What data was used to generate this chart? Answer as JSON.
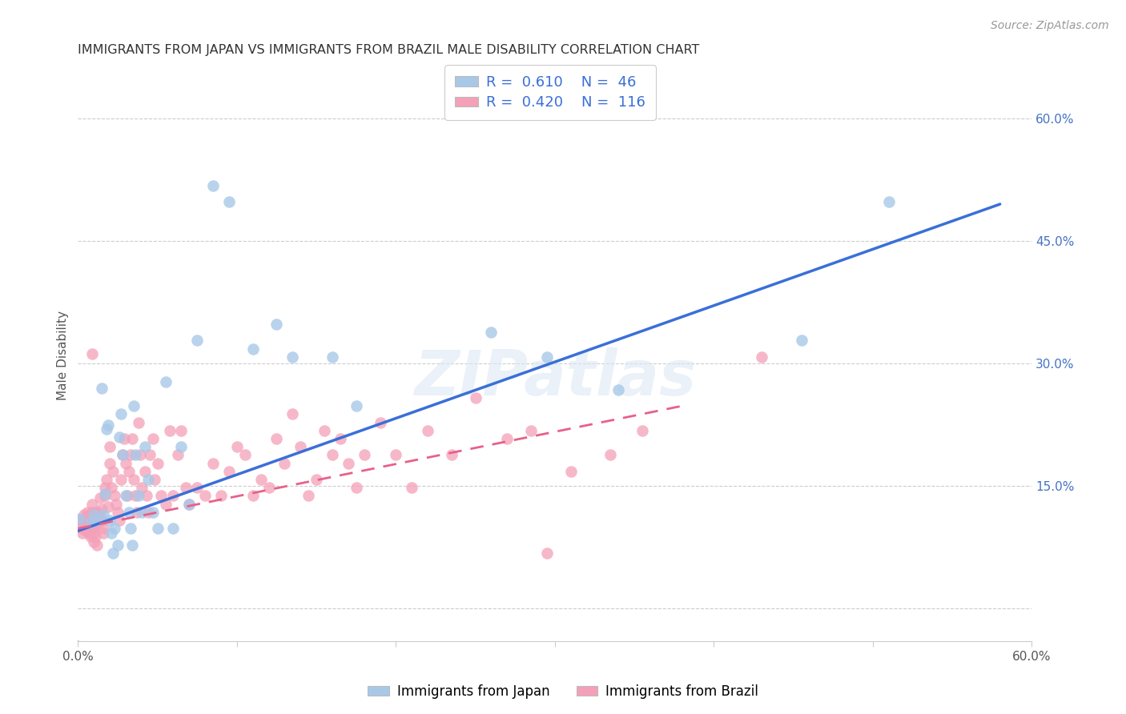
{
  "title": "IMMIGRANTS FROM JAPAN VS IMMIGRANTS FROM BRAZIL MALE DISABILITY CORRELATION CHART",
  "source": "Source: ZipAtlas.com",
  "ylabel": "Male Disability",
  "xlim": [
    0.0,
    0.6
  ],
  "ylim": [
    -0.04,
    0.66
  ],
  "japan_R": 0.61,
  "japan_N": 46,
  "brazil_R": 0.42,
  "brazil_N": 116,
  "japan_color": "#a8c8e8",
  "brazil_color": "#f4a0b8",
  "japan_line_color": "#3a6fd8",
  "brazil_line_color": "#e8608a",
  "watermark": "ZIPatlas",
  "japan_x": [
    0.001,
    0.008,
    0.01,
    0.012,
    0.015,
    0.016,
    0.017,
    0.018,
    0.019,
    0.02,
    0.021,
    0.022,
    0.023,
    0.025,
    0.026,
    0.027,
    0.028,
    0.03,
    0.032,
    0.033,
    0.034,
    0.035,
    0.036,
    0.038,
    0.04,
    0.042,
    0.044,
    0.047,
    0.05,
    0.055,
    0.06,
    0.065,
    0.07,
    0.075,
    0.085,
    0.095,
    0.11,
    0.125,
    0.135,
    0.16,
    0.175,
    0.26,
    0.295,
    0.34,
    0.455,
    0.51
  ],
  "japan_y": [
    0.11,
    0.105,
    0.115,
    0.108,
    0.27,
    0.115,
    0.14,
    0.22,
    0.225,
    0.108,
    0.092,
    0.068,
    0.098,
    0.078,
    0.21,
    0.238,
    0.188,
    0.138,
    0.118,
    0.098,
    0.078,
    0.248,
    0.188,
    0.138,
    0.118,
    0.198,
    0.158,
    0.118,
    0.098,
    0.278,
    0.098,
    0.198,
    0.128,
    0.328,
    0.518,
    0.498,
    0.318,
    0.348,
    0.308,
    0.308,
    0.248,
    0.338,
    0.308,
    0.268,
    0.328,
    0.498
  ],
  "brazil_x": [
    0.001,
    0.002,
    0.003,
    0.003,
    0.004,
    0.004,
    0.004,
    0.005,
    0.005,
    0.005,
    0.006,
    0.006,
    0.006,
    0.007,
    0.007,
    0.007,
    0.008,
    0.008,
    0.008,
    0.008,
    0.009,
    0.009,
    0.009,
    0.009,
    0.01,
    0.01,
    0.01,
    0.01,
    0.011,
    0.011,
    0.012,
    0.012,
    0.013,
    0.013,
    0.014,
    0.014,
    0.015,
    0.015,
    0.016,
    0.016,
    0.017,
    0.017,
    0.018,
    0.019,
    0.02,
    0.02,
    0.021,
    0.022,
    0.023,
    0.024,
    0.025,
    0.026,
    0.027,
    0.028,
    0.029,
    0.03,
    0.031,
    0.032,
    0.033,
    0.034,
    0.035,
    0.036,
    0.037,
    0.038,
    0.039,
    0.04,
    0.042,
    0.043,
    0.044,
    0.045,
    0.047,
    0.048,
    0.05,
    0.052,
    0.055,
    0.058,
    0.06,
    0.063,
    0.065,
    0.068,
    0.07,
    0.075,
    0.08,
    0.085,
    0.09,
    0.095,
    0.1,
    0.105,
    0.11,
    0.115,
    0.12,
    0.125,
    0.13,
    0.135,
    0.14,
    0.145,
    0.15,
    0.155,
    0.16,
    0.165,
    0.17,
    0.175,
    0.18,
    0.19,
    0.2,
    0.21,
    0.22,
    0.235,
    0.25,
    0.27,
    0.285,
    0.295,
    0.31,
    0.335,
    0.355,
    0.43
  ],
  "brazil_y": [
    0.108,
    0.098,
    0.108,
    0.092,
    0.115,
    0.105,
    0.098,
    0.112,
    0.102,
    0.095,
    0.118,
    0.108,
    0.095,
    0.112,
    0.102,
    0.092,
    0.115,
    0.105,
    0.098,
    0.088,
    0.312,
    0.118,
    0.128,
    0.098,
    0.108,
    0.092,
    0.082,
    0.098,
    0.118,
    0.088,
    0.108,
    0.078,
    0.118,
    0.105,
    0.135,
    0.112,
    0.122,
    0.108,
    0.098,
    0.092,
    0.138,
    0.148,
    0.158,
    0.125,
    0.198,
    0.178,
    0.148,
    0.168,
    0.138,
    0.128,
    0.118,
    0.108,
    0.158,
    0.188,
    0.208,
    0.178,
    0.138,
    0.168,
    0.188,
    0.208,
    0.158,
    0.138,
    0.118,
    0.228,
    0.188,
    0.148,
    0.168,
    0.138,
    0.118,
    0.188,
    0.208,
    0.158,
    0.178,
    0.138,
    0.128,
    0.218,
    0.138,
    0.188,
    0.218,
    0.148,
    0.128,
    0.148,
    0.138,
    0.178,
    0.138,
    0.168,
    0.198,
    0.188,
    0.138,
    0.158,
    0.148,
    0.208,
    0.178,
    0.238,
    0.198,
    0.138,
    0.158,
    0.218,
    0.188,
    0.208,
    0.178,
    0.148,
    0.188,
    0.228,
    0.188,
    0.148,
    0.218,
    0.188,
    0.258,
    0.208,
    0.218,
    0.068,
    0.168,
    0.188,
    0.218,
    0.308
  ],
  "japan_line_x": [
    0.0,
    0.58
  ],
  "japan_line_y": [
    0.095,
    0.495
  ],
  "brazil_line_x": [
    0.0,
    0.38
  ],
  "brazil_line_y": [
    0.098,
    0.248
  ]
}
